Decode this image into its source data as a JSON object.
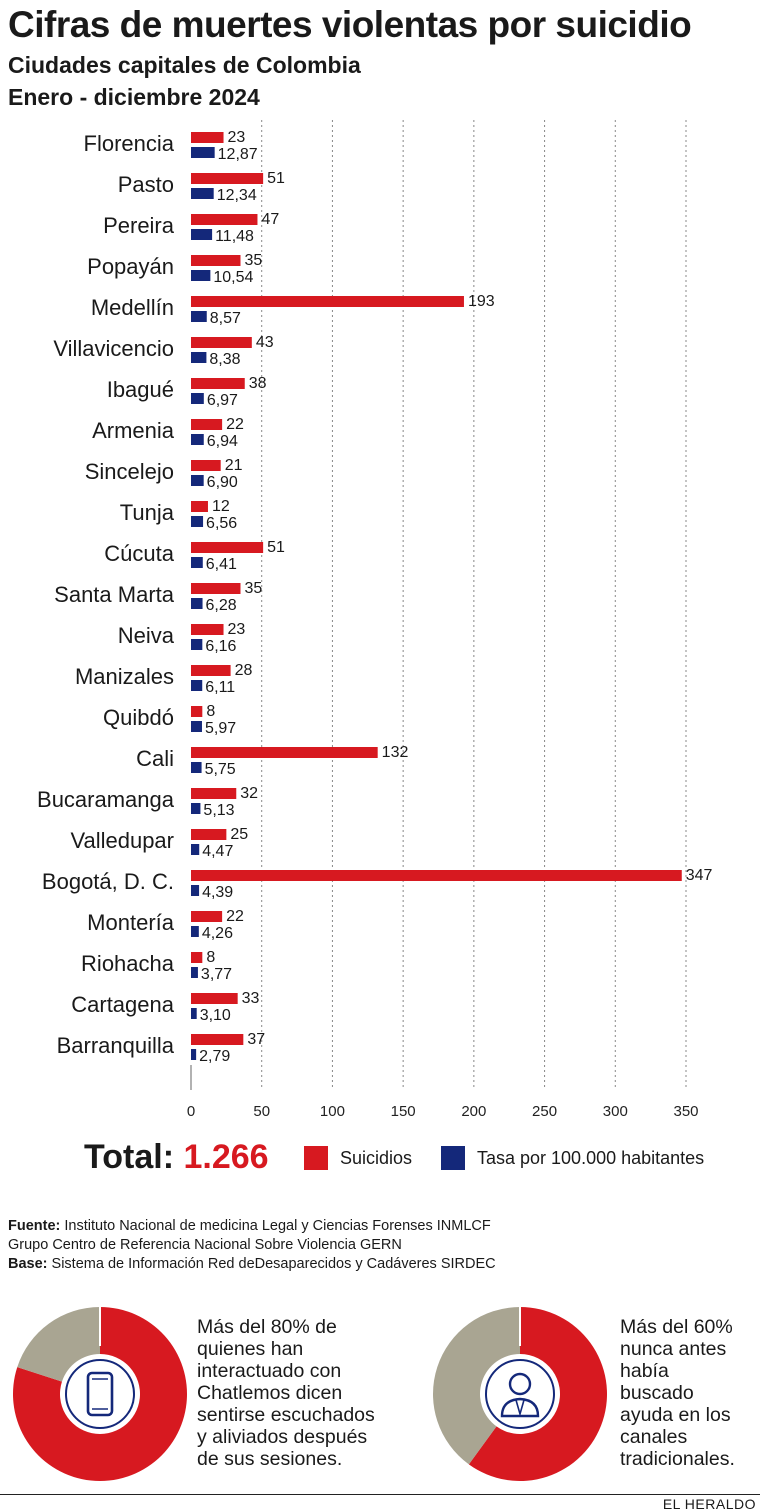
{
  "header": {
    "title": "Cifras de muertes violentas por suicidio",
    "subtitle": "Ciudades capitales de Colombia",
    "period": "Enero - diciembre 2024"
  },
  "chart_data": {
    "type": "bar",
    "orientation": "horizontal",
    "categories": [
      "Florencia",
      "Pasto",
      "Pereira",
      "Popayán",
      "Medellín",
      "Villavicencio",
      "Ibagué",
      "Armenia",
      "Sincelejo",
      "Tunja",
      "Cúcuta",
      "Santa Marta",
      "Neiva",
      "Manizales",
      "Quibdó",
      "Cali",
      "Bucaramanga",
      "Valledupar",
      "Bogotá, D. C.",
      "Montería",
      "Riohacha",
      "Cartagena",
      "Barranquilla"
    ],
    "series": [
      {
        "name": "Suicidios",
        "color": "#d71920",
        "values": [
          23,
          51,
          47,
          35,
          193,
          43,
          38,
          22,
          21,
          12,
          51,
          35,
          23,
          28,
          8,
          132,
          32,
          25,
          347,
          22,
          8,
          33,
          37
        ],
        "labels": [
          "23",
          "51",
          "47",
          "35",
          "193",
          "43",
          "38",
          "22",
          "21",
          "12",
          "51",
          "35",
          "23",
          "28",
          "8",
          "132",
          "32",
          "25",
          "347",
          "22",
          "8",
          "33",
          "37"
        ]
      },
      {
        "name": "Tasa por 100.000 habitantes",
        "color": "#14287a",
        "values": [
          12.87,
          12.34,
          11.48,
          10.54,
          8.57,
          8.38,
          6.97,
          6.94,
          6.9,
          6.56,
          6.41,
          6.28,
          6.16,
          6.11,
          5.97,
          5.75,
          5.13,
          4.47,
          4.39,
          4.26,
          3.77,
          3.1,
          2.79
        ],
        "labels": [
          "12,87",
          "12,34",
          "11,48",
          "10,54",
          "8,57",
          "8,38",
          "6,97",
          "6,94",
          "6,90",
          "6,56",
          "6,41",
          "6,28",
          "6,16",
          "6,11",
          "5,97",
          "5,75",
          "5,13",
          "4,47",
          "4,39",
          "4,26",
          "3,77",
          "3,10",
          "2,79"
        ]
      }
    ],
    "xlim": [
      0,
      350
    ],
    "xticks": [
      0,
      50,
      100,
      150,
      200,
      250,
      300,
      350
    ],
    "grid": "vertical dotted"
  },
  "summary": {
    "total_label": "Total:",
    "total_value": "1.266"
  },
  "legend": {
    "suicides": "Suicidios",
    "rate": "Tasa por 100.000 habitantes"
  },
  "sources": {
    "fuente_label": "Fuente:",
    "fuente": "Instituto Nacional de medicina Legal y Ciencias Forenses INMLCF",
    "fuente2": "Grupo Centro de Referencia Nacional Sobre Violencia GERN",
    "base_label": "Base:",
    "base": "Sistema de Información Red deDesaparecidos y Cadáveres SIRDEC"
  },
  "facts": [
    {
      "text": "Más del 80% de\nquienes han\ninteractuado con\nChatlemos dicen\nsentirse escuchados\ny aliviados después\nde sus sesiones.",
      "percent": 80,
      "icon": "smartphone-icon"
    },
    {
      "text": "Más del 60%\nnunca antes\nhabía\nbuscado\nayuda en los\ncanales\ntradicionales.",
      "percent": 60,
      "icon": "person-icon"
    }
  ],
  "colors": {
    "red": "#d71920",
    "blue": "#14287a",
    "grey": "#a9a592"
  },
  "footer": {
    "brand": "EL HERALDO"
  }
}
